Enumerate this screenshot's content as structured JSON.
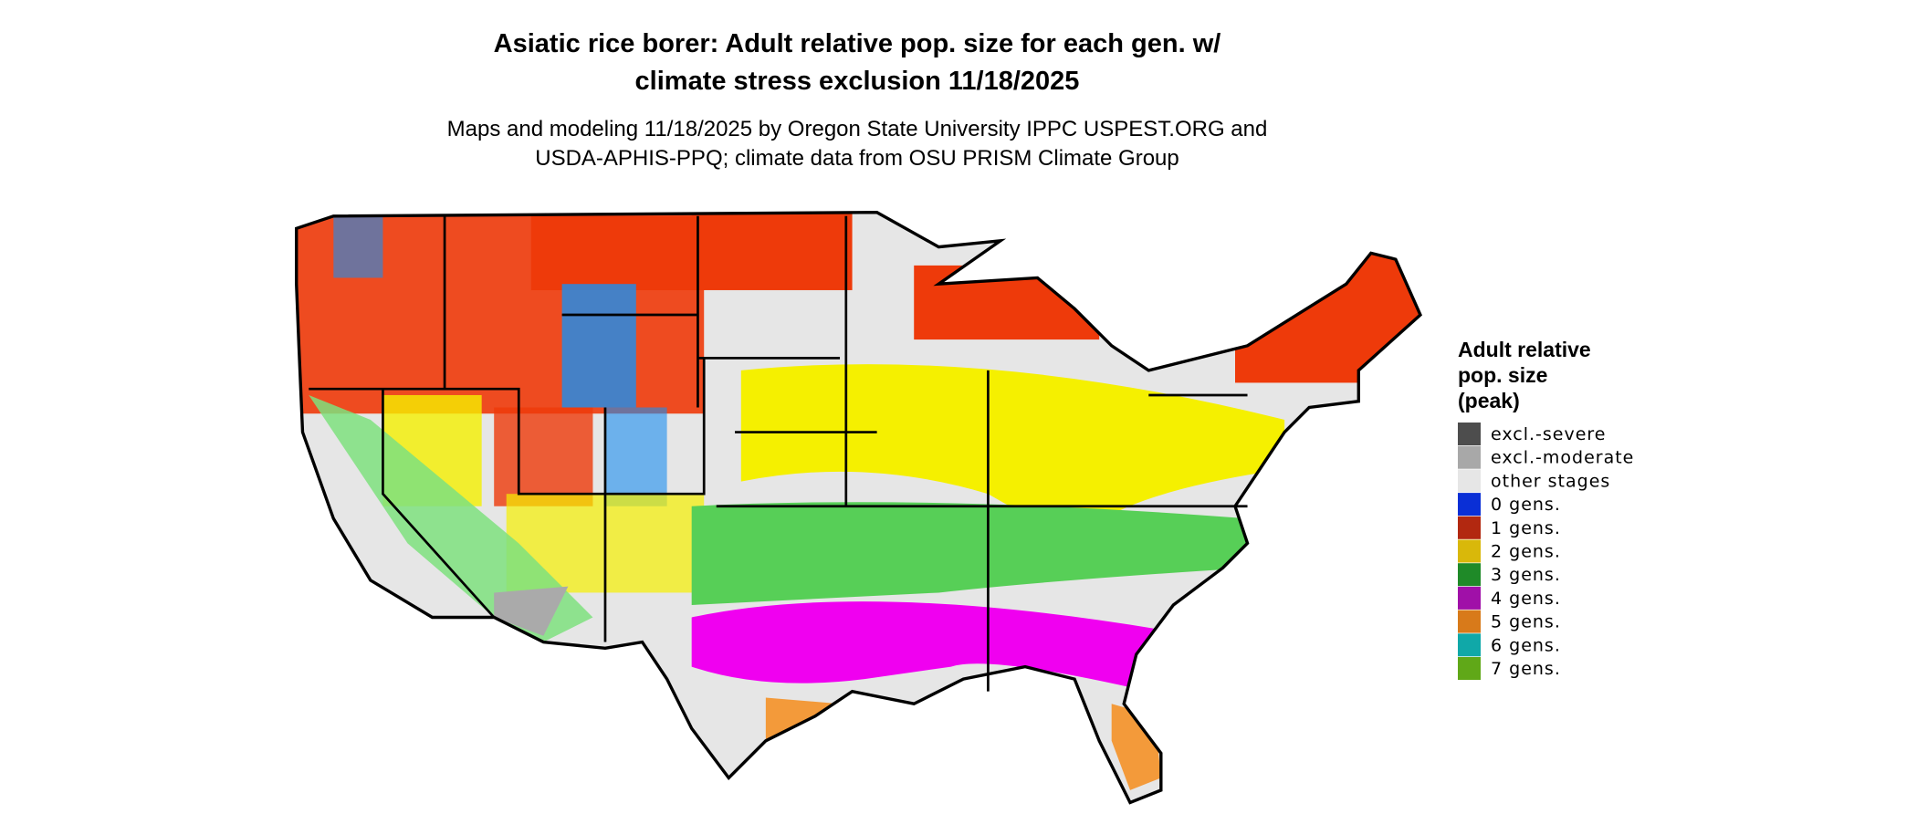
{
  "title": [
    "Asiatic rice borer: Adult relative pop. size for each gen. w/",
    "climate stress exclusion 11/18/2025"
  ],
  "subtitle": [
    "Maps and modeling 11/18/2025 by Oregon State University IPPC USPEST.ORG and",
    "USDA-APHIS-PPQ; climate data from OSU PRISM Climate Group"
  ],
  "legend": {
    "title": [
      "Adult relative",
      "pop. size",
      "(peak)"
    ],
    "items": [
      {
        "label": "excl.-severe",
        "color": "#4d4d4d"
      },
      {
        "label": "excl.-moderate",
        "color": "#a8a8a8"
      },
      {
        "label": "other stages",
        "color": "#e6e6e6"
      },
      {
        "label": "0 gens.",
        "color": "#0a2fd6"
      },
      {
        "label": "1 gens.",
        "color": "#b22810"
      },
      {
        "label": "2 gens.",
        "color": "#d9b80a"
      },
      {
        "label": "3 gens.",
        "color": "#1f8a28"
      },
      {
        "label": "4 gens.",
        "color": "#a010a8"
      },
      {
        "label": "5 gens.",
        "color": "#d87a1a"
      },
      {
        "label": "6 gens.",
        "color": "#10a8a8"
      },
      {
        "label": "7 gens.",
        "color": "#60a818"
      }
    ]
  }
}
